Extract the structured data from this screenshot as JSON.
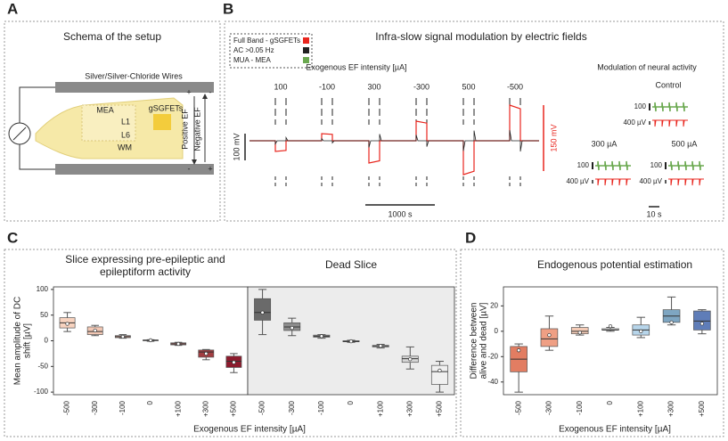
{
  "panel_labels": [
    "A",
    "B",
    "C",
    "D"
  ],
  "schema": {
    "title": "Schema of the setup",
    "wires": "Silver/Silver-Chloride Wires",
    "mea": "MEA",
    "gsgfets": "gSGFETs",
    "l1": "L1",
    "l6": "L6",
    "wm": "WM",
    "positive": "Positive EF",
    "negative": "Negative EF",
    "plus": "+",
    "minus": "-"
  },
  "traces": {
    "title": "Infra-slow signal modulation by electric fields",
    "legend": [
      "Full Band - gSGFETs",
      "AC >0.05 Hz",
      "MUA - MEA"
    ],
    "legend_colors": [
      "#e8261e",
      "#222222",
      "#6aa84f"
    ],
    "xlabel": "Exogenous EF intensity [µA]",
    "steps": [
      "100",
      "-100",
      "300",
      "-300",
      "500",
      "-500"
    ],
    "scale_left": "100 mV",
    "scale_right": "150 mV",
    "scale_time": "1000 s",
    "modulation_title": "Modulation of neural activity",
    "control": "Control",
    "mua_scale": "100",
    "ac_scale": "400 µV",
    "cond_300": "300 µA",
    "cond_500": "500 µA",
    "time_small": "10 s"
  },
  "chart_data": [
    {
      "type": "box",
      "title": [
        "Slice expressing pre-epileptic and",
        "epileptiform activity"
      ],
      "ylabel": [
        "Mean amplitude of DC",
        "shift [µV]"
      ],
      "xlabel": "Exogenous EF intensity [µA]",
      "categories": [
        "-500",
        "-300",
        "-100",
        "0",
        "+100",
        "+300",
        "+500"
      ],
      "ylim": [
        -105,
        105
      ],
      "yticks": [
        -100,
        -50,
        0,
        50,
        100
      ],
      "values": [
        {
          "min": 18,
          "q1": 25,
          "median": 35,
          "q3": 45,
          "max": 55,
          "mean": 33
        },
        {
          "min": 10,
          "q1": 12,
          "median": 18,
          "q3": 27,
          "max": 30,
          "mean": 20
        },
        {
          "min": 5,
          "q1": 6,
          "median": 8,
          "q3": 10,
          "max": 12,
          "mean": 8
        },
        {
          "min": -1,
          "q1": 0,
          "median": 1,
          "q3": 1.5,
          "max": 2,
          "mean": 1
        },
        {
          "min": -9,
          "q1": -8,
          "median": -6,
          "q3": -4,
          "max": -3,
          "mean": -6
        },
        {
          "min": -37,
          "q1": -32,
          "median": -22,
          "q3": -18,
          "max": -17,
          "mean": -25
        },
        {
          "min": -62,
          "q1": -52,
          "median": -40,
          "q3": -30,
          "max": -25,
          "mean": -42
        }
      ],
      "colors": [
        "#f8d3bf",
        "#f2c7b4",
        "#d7a597",
        "#b88a86",
        "#b46b69",
        "#a23d41",
        "#8c1b2d"
      ]
    },
    {
      "type": "box",
      "title": "Dead Slice",
      "categories": [
        "-500",
        "-300",
        "-100",
        "0",
        "+100",
        "+300",
        "+500"
      ],
      "ylim": [
        -105,
        105
      ],
      "background": "#ececec",
      "values": [
        {
          "min": 12,
          "q1": 40,
          "median": 55,
          "q3": 82,
          "max": 100,
          "mean": 55
        },
        {
          "min": 10,
          "q1": 20,
          "median": 27,
          "q3": 35,
          "max": 44,
          "mean": 25
        },
        {
          "min": 5,
          "q1": 7,
          "median": 9,
          "q3": 11,
          "max": 12,
          "mean": 9
        },
        {
          "min": -3,
          "q1": -2,
          "median": -1,
          "q3": 0,
          "max": 1,
          "mean": -1
        },
        {
          "min": -14,
          "q1": -12,
          "median": -10,
          "q3": -9,
          "max": -7,
          "mean": -10
        },
        {
          "min": -55,
          "q1": -42,
          "median": -35,
          "q3": -30,
          "max": -12,
          "mean": -36
        },
        {
          "min": -100,
          "q1": -85,
          "median": -60,
          "q3": -48,
          "max": -40,
          "mean": -58
        }
      ],
      "colors": [
        "#6a6a6a",
        "#8c8c8c",
        "#9e9e9e",
        "#b0b0b0",
        "#c4c4c4",
        "#d6d6d6",
        "#f0f0f0"
      ]
    },
    {
      "type": "box",
      "title": "Endogenous potential estimation",
      "ylabel": [
        "Difference between",
        "alive and dead [µV]"
      ],
      "xlabel": "Exogenous EF intensity [µA]",
      "categories": [
        "-500",
        "-300",
        "-100",
        "0",
        "+100",
        "+300",
        "+500"
      ],
      "ylim": [
        -50,
        35
      ],
      "yticks": [
        -40,
        -20,
        0,
        20
      ],
      "values": [
        {
          "min": -48,
          "q1": -32,
          "median": -22,
          "q3": -12,
          "max": -10,
          "mean": -15
        },
        {
          "min": -15,
          "q1": -12,
          "median": -6,
          "q3": 2,
          "max": 12,
          "mean": -3
        },
        {
          "min": -3,
          "q1": -2,
          "median": 0,
          "q3": 3,
          "max": 5,
          "mean": -1
        },
        {
          "min": 0,
          "q1": 1,
          "median": 1,
          "q3": 2,
          "max": 3,
          "mean": 4
        },
        {
          "min": -5,
          "q1": -3,
          "median": 1,
          "q3": 5,
          "max": 11,
          "mean": 0
        },
        {
          "min": 5,
          "q1": 7,
          "median": 12,
          "q3": 17,
          "max": 27,
          "mean": 7
        },
        {
          "min": -2,
          "q1": 1,
          "median": 8,
          "q3": 16,
          "max": 17,
          "mean": 6
        }
      ],
      "colors": [
        "#e27d62",
        "#ef9f84",
        "#f4cbb6",
        "#dcdcdc",
        "#b7d5ea",
        "#7ea6c2",
        "#5f7db8"
      ]
    }
  ]
}
